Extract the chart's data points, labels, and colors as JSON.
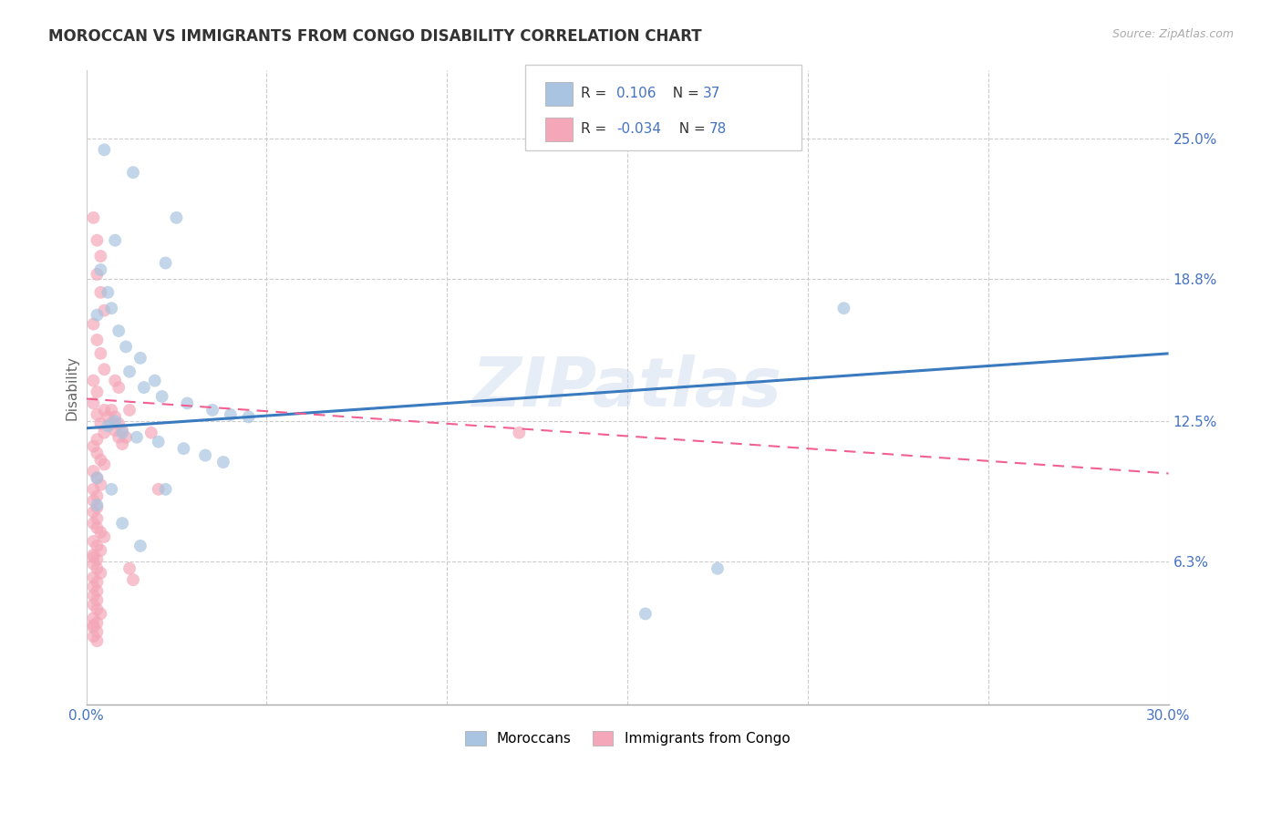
{
  "title": "MOROCCAN VS IMMIGRANTS FROM CONGO DISABILITY CORRELATION CHART",
  "source": "Source: ZipAtlas.com",
  "ylabel": "Disability",
  "xlim": [
    0.0,
    0.3
  ],
  "ylim": [
    0.0,
    0.28
  ],
  "xtick_positions": [
    0.0,
    0.05,
    0.1,
    0.15,
    0.2,
    0.25,
    0.3
  ],
  "xtick_labels": [
    "0.0%",
    "",
    "",
    "",
    "",
    "",
    "30.0%"
  ],
  "ytick_positions": [
    0.0,
    0.063,
    0.125,
    0.188,
    0.25
  ],
  "ytick_labels": [
    "",
    "6.3%",
    "12.5%",
    "18.8%",
    "25.0%"
  ],
  "r_moroccan": 0.106,
  "n_moroccan": 37,
  "r_congo": -0.034,
  "n_congo": 78,
  "color_moroccan": "#a8c4e0",
  "color_congo": "#f4a7b9",
  "line_moroccan": "#3a7abf",
  "line_congo": "#f06090",
  "watermark": "ZIPatlas",
  "moroccan_line_x0": 0.0,
  "moroccan_line_y0": 0.122,
  "moroccan_line_x1": 0.3,
  "moroccan_line_y1": 0.155,
  "congo_line_x0": 0.0,
  "congo_line_y0": 0.135,
  "congo_line_x1": 0.3,
  "congo_line_y1": 0.102,
  "moroccan_x": [
    0.013,
    0.025,
    0.022,
    0.005,
    0.008,
    0.004,
    0.006,
    0.003,
    0.009,
    0.011,
    0.015,
    0.012,
    0.019,
    0.016,
    0.021,
    0.028,
    0.035,
    0.04,
    0.007,
    0.045,
    0.008,
    0.006,
    0.01,
    0.014,
    0.02,
    0.027,
    0.033,
    0.038,
    0.21,
    0.003,
    0.007,
    0.003,
    0.01,
    0.015,
    0.022,
    0.155,
    0.175
  ],
  "moroccan_y": [
    0.235,
    0.215,
    0.195,
    0.245,
    0.205,
    0.192,
    0.182,
    0.172,
    0.165,
    0.158,
    0.153,
    0.147,
    0.143,
    0.14,
    0.136,
    0.133,
    0.13,
    0.128,
    0.175,
    0.127,
    0.125,
    0.123,
    0.12,
    0.118,
    0.116,
    0.113,
    0.11,
    0.107,
    0.175,
    0.1,
    0.095,
    0.088,
    0.08,
    0.07,
    0.095,
    0.04,
    0.06
  ],
  "congo_x": [
    0.002,
    0.003,
    0.004,
    0.003,
    0.004,
    0.005,
    0.002,
    0.003,
    0.004,
    0.005,
    0.002,
    0.003,
    0.002,
    0.003,
    0.004,
    0.005,
    0.003,
    0.002,
    0.003,
    0.004,
    0.005,
    0.002,
    0.003,
    0.004,
    0.002,
    0.003,
    0.002,
    0.003,
    0.002,
    0.003,
    0.002,
    0.003,
    0.004,
    0.005,
    0.002,
    0.003,
    0.004,
    0.002,
    0.003,
    0.002,
    0.003,
    0.004,
    0.002,
    0.003,
    0.002,
    0.003,
    0.002,
    0.003,
    0.002,
    0.003,
    0.004,
    0.002,
    0.003,
    0.002,
    0.003,
    0.002,
    0.003,
    0.007,
    0.008,
    0.009,
    0.01,
    0.011,
    0.012,
    0.008,
    0.009,
    0.005,
    0.006,
    0.007,
    0.008,
    0.009,
    0.01,
    0.012,
    0.013,
    0.018,
    0.02,
    0.12,
    0.002,
    0.002
  ],
  "congo_y": [
    0.215,
    0.205,
    0.198,
    0.19,
    0.182,
    0.174,
    0.168,
    0.161,
    0.155,
    0.148,
    0.143,
    0.138,
    0.133,
    0.128,
    0.124,
    0.12,
    0.117,
    0.114,
    0.111,
    0.108,
    0.106,
    0.103,
    0.1,
    0.097,
    0.095,
    0.092,
    0.09,
    0.087,
    0.085,
    0.082,
    0.08,
    0.078,
    0.076,
    0.074,
    0.072,
    0.07,
    0.068,
    0.066,
    0.064,
    0.062,
    0.06,
    0.058,
    0.056,
    0.054,
    0.052,
    0.05,
    0.048,
    0.046,
    0.044,
    0.042,
    0.04,
    0.038,
    0.036,
    0.034,
    0.032,
    0.03,
    0.028,
    0.13,
    0.127,
    0.124,
    0.121,
    0.118,
    0.13,
    0.143,
    0.14,
    0.13,
    0.127,
    0.124,
    0.121,
    0.118,
    0.115,
    0.06,
    0.055,
    0.12,
    0.095,
    0.12,
    0.065,
    0.035
  ]
}
